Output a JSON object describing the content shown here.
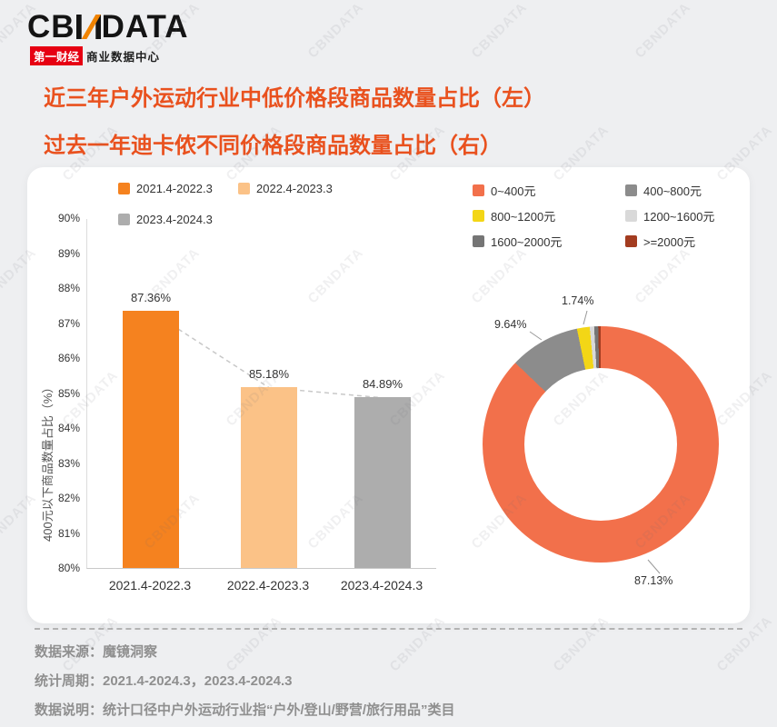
{
  "logo": {
    "cb": "CB",
    "data": "DATA",
    "tagline_box": "第一财经",
    "tagline_rest": "商业数据中心"
  },
  "watermark": {
    "text": "CBNDATA"
  },
  "titles": {
    "line1": "近三年户外运动行业中低价格段商品数量占比（左）",
    "line2": "过去一年迪卡侬不同价格段商品数量占比（右）"
  },
  "colors": {
    "accent_title": "#E9511E",
    "brand_red": "#E60012",
    "bar_orange": "#F5821F",
    "bar_light_orange": "#FBC287",
    "bar_gray": "#ADADAD",
    "donut_orange": "#F2704B"
  },
  "chart_data": [
    {
      "type": "bar",
      "title": "近三年户外运动行业中低价格段商品数量占比",
      "ylabel": "400元以下商品数量占比（%）",
      "categories": [
        "2021.4-2022.3",
        "2022.4-2023.3",
        "2023.4-2024.3"
      ],
      "values": [
        87.36,
        85.18,
        84.89
      ],
      "value_labels": [
        "87.36%",
        "85.18%",
        "84.89%"
      ],
      "colors": [
        "#F5821F",
        "#FBC287",
        "#ADADAD"
      ],
      "ylim": [
        80,
        90
      ],
      "yticks": [
        "90%",
        "89%",
        "88%",
        "87%",
        "86%",
        "85%",
        "84%",
        "83%",
        "82%",
        "81%",
        "80%"
      ],
      "legend": [
        {
          "label": "2021.4-2022.3",
          "color": "#F5821F"
        },
        {
          "label": "2022.4-2023.3",
          "color": "#FBC287"
        },
        {
          "label": "2023.4-2024.3",
          "color": "#ADADAD"
        }
      ],
      "grid": false,
      "trend_line_dashed": true
    },
    {
      "type": "pie",
      "donut": true,
      "title": "过去一年迪卡侬不同价格段商品数量占比",
      "legend_position": "top",
      "segments": [
        {
          "label": "0~400元",
          "value": 87.13,
          "color": "#F2704B"
        },
        {
          "label": "400~800元",
          "value": 9.64,
          "color": "#8C8C8C"
        },
        {
          "label": "800~1200元",
          "value": 1.74,
          "color": "#F3D616"
        },
        {
          "label": "1200~1600元",
          "value": 0.6,
          "color": "#D9D9D9"
        },
        {
          "label": "1600~2000元",
          "value": 0.55,
          "color": "#757575"
        },
        {
          "label": ">=2000元",
          "value": 0.34,
          "color": "#A33C20"
        }
      ],
      "shown_labels": [
        "87.13%",
        "9.64%",
        "1.74%"
      ]
    }
  ],
  "footer": {
    "line1": "数据来源：魔镜洞察",
    "line2": "统计周期：2021.4-2024.3，2023.4-2024.3",
    "line3": "数据说明：统计口径中户外运动行业指“户外/登山/野营/旅行用品”类目"
  }
}
